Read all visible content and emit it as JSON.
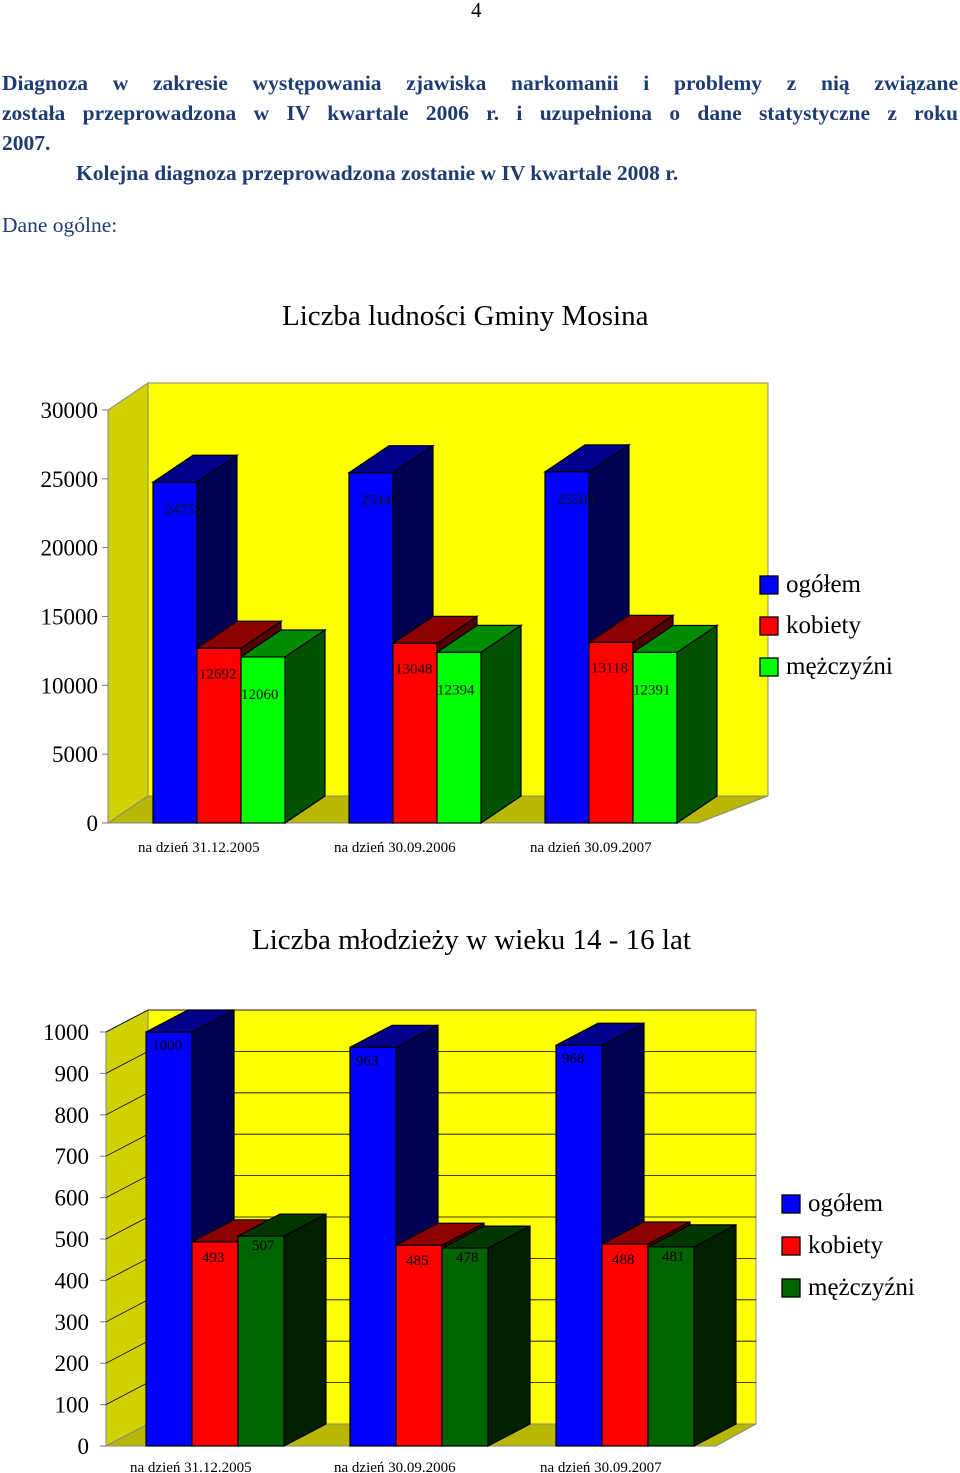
{
  "page": {
    "number": "4",
    "intro_line1": "Diagnoza w zakresie występowania zjawiska narkomanii i problemy z nią związane",
    "intro_line2": "została przeprowadzona w IV kwartale 2006 r. i uzupełniona o dane statystyczne z roku",
    "intro_line3": "2007.",
    "intro_line4": "Kolejna diagnoza przeprowadzona zostanie w IV kwartale 2008 r.",
    "section_label": "Dane ogólne:"
  },
  "colors": {
    "ogolem": "#0000ff",
    "kobiety": "#ff0000",
    "mezczyzni_chart1": "#00ff00",
    "mezczyzni_chart2": "#006400",
    "plot_wall": "#ffff00"
  },
  "chart_data": [
    {
      "type": "bar",
      "title": "Liczba ludności Gminy Mosina",
      "categories": [
        "na dzień 31.12.2005",
        "na dzień 30.09.2006",
        "na dzień 30.09.2007"
      ],
      "series": [
        {
          "name": "ogółem",
          "values": [
            24752,
            25442,
            25509
          ]
        },
        {
          "name": "kobiety",
          "values": [
            12692,
            13048,
            13118
          ]
        },
        {
          "name": "mężczyźni",
          "values": [
            12060,
            12394,
            12391
          ]
        }
      ],
      "ylim": [
        0,
        30000
      ],
      "yticks": [
        0,
        5000,
        10000,
        15000,
        20000,
        25000,
        30000
      ],
      "grid": false,
      "legend": "right",
      "style": "3d"
    },
    {
      "type": "bar",
      "title": "Liczba młodzieży w wieku 14 - 16 lat",
      "categories": [
        "na dzień 31.12.2005",
        "na dzień 30.09.2006",
        "na dzień 30.09.2007"
      ],
      "series": [
        {
          "name": "ogółem",
          "values": [
            1000,
            963,
            968
          ]
        },
        {
          "name": "kobiety",
          "values": [
            493,
            485,
            488
          ]
        },
        {
          "name": "mężczyźni",
          "values": [
            507,
            478,
            481
          ]
        }
      ],
      "ylim": [
        0,
        1000
      ],
      "yticks": [
        0,
        100,
        200,
        300,
        400,
        500,
        600,
        700,
        800,
        900,
        1000
      ],
      "grid": true,
      "legend": "right",
      "style": "3d"
    }
  ]
}
